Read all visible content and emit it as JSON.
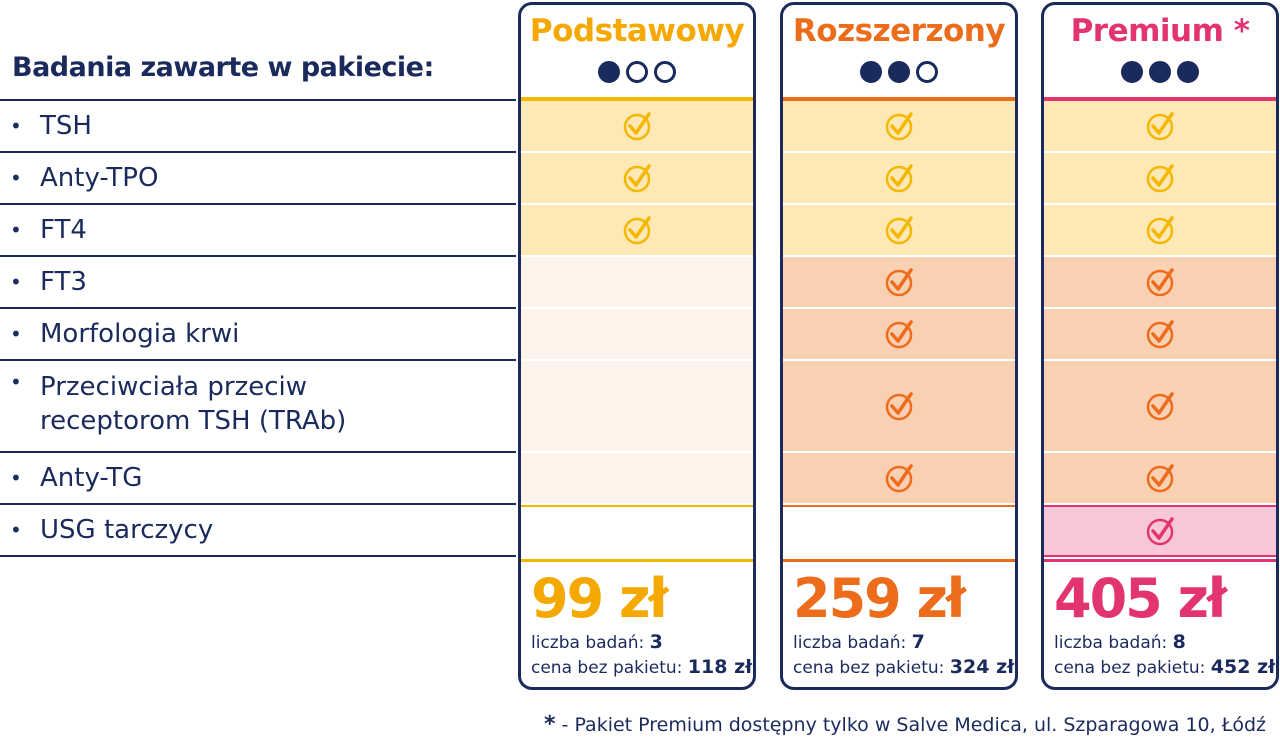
{
  "heading": "Badania zawarte w pakiecie:",
  "tests": [
    {
      "bullet": "•",
      "label": "TSH"
    },
    {
      "bullet": "•",
      "label": "Anty-TPO"
    },
    {
      "bullet": "•",
      "label": "FT4"
    },
    {
      "bullet": "•",
      "label": "FT3"
    },
    {
      "bullet": "•",
      "label": "Morfologia krwi"
    },
    {
      "bullet": "•",
      "label": "Przeciwciała przeciw"
    },
    {
      "bullet": "•",
      "label": "Anty-TG"
    },
    {
      "bullet": "•",
      "label": "USG tarczycy"
    }
  ],
  "test_line2": "receptorom TSH (TRAb)",
  "packages": [
    {
      "name": "Podstawowy",
      "title_color": "#f5a800",
      "level": 1,
      "included": [
        true,
        true,
        true,
        false,
        false,
        false,
        false,
        false
      ],
      "price": "99 zł",
      "count_label": "liczba badań:",
      "count": "3",
      "no_pkg_label": "cena bez pakietu:",
      "no_pkg_price": "118 zł"
    },
    {
      "name": "Rozszerzony",
      "title_color": "#ec6c1c",
      "level": 2,
      "included": [
        true,
        true,
        true,
        true,
        true,
        true,
        true,
        false
      ],
      "price": "259 zł",
      "count_label": "liczba badań:",
      "count": "7",
      "no_pkg_label": "cena bez pakietu:",
      "no_pkg_price": "324 zł"
    },
    {
      "name": "Premium *",
      "title_color": "#e2356f",
      "level": 3,
      "included": [
        true,
        true,
        true,
        true,
        true,
        true,
        true,
        true
      ],
      "price": "405 zł",
      "count_label": "liczba badań:",
      "count": "8",
      "no_pkg_label": "cena bez pakietu:",
      "no_pkg_price": "452 zł"
    }
  ],
  "colors": {
    "navy": "#1b2a5c",
    "yellow": "#f5b800",
    "yellow_fill": "#fde8b6",
    "orange": "#ec6c1c",
    "orange_fill": "#f9d0b2",
    "pink": "#e2356f",
    "pink_fill": "#f7c7d9",
    "empty_fill": "#fdf3ea",
    "check_icon": "check-circle-icon"
  },
  "footnote": {
    "star": "*",
    "text": " - Pakiet Premium dostępny tylko w Salve Medica, ul. Szparagowa 10, Łódź"
  }
}
